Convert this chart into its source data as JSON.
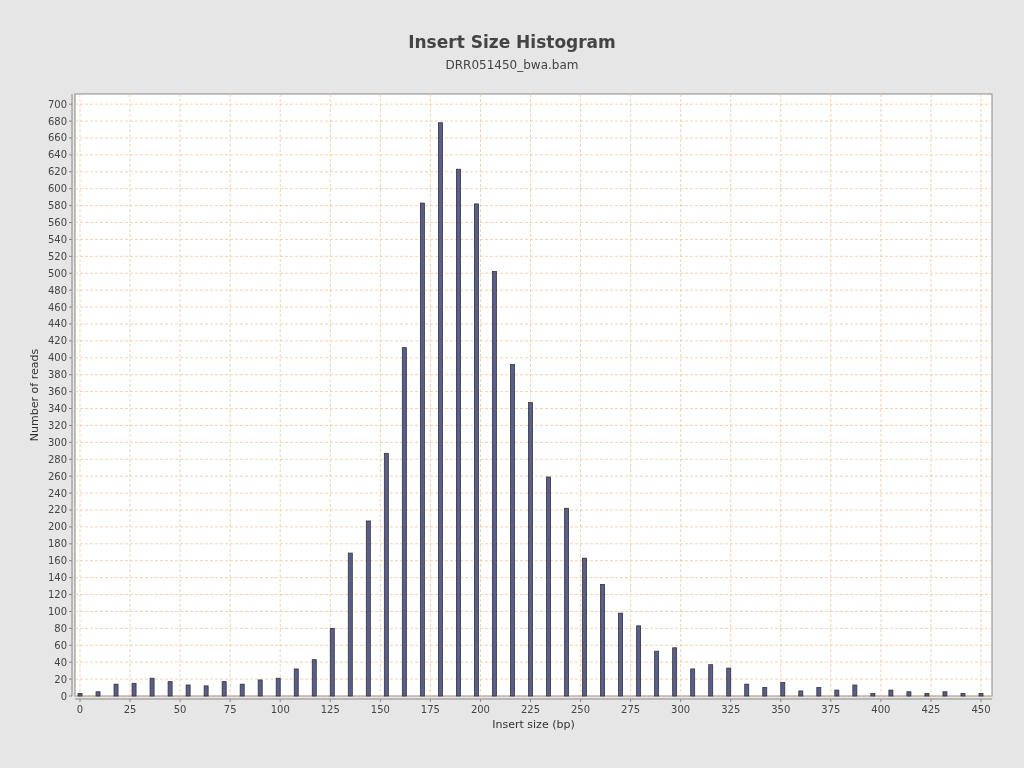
{
  "chart_data": {
    "type": "bar",
    "title": "Insert Size Histogram",
    "subtitle": "DRR051450_bwa.bam",
    "xlabel": "Insert size (bp)",
    "ylabel": "Number of reads",
    "x": [
      0,
      9,
      18,
      27,
      36,
      45,
      54,
      63,
      72,
      81,
      90,
      99,
      108,
      117,
      126,
      135,
      144,
      153,
      162,
      171,
      180,
      189,
      198,
      207,
      216,
      225,
      234,
      243,
      252,
      261,
      270,
      279,
      288,
      297,
      306,
      315,
      324,
      333,
      342,
      351,
      360,
      369,
      378,
      387,
      396,
      405,
      414,
      423,
      432,
      441,
      450
    ],
    "series": [
      {
        "color": "#5a5e8c",
        "values": [
          3,
          5,
          14,
          15,
          21,
          17,
          13,
          12,
          17,
          14,
          19,
          21,
          32,
          43,
          80,
          169,
          207,
          287,
          412,
          583,
          678,
          623,
          582,
          502,
          392,
          347,
          259,
          222,
          163,
          132,
          98,
          83,
          53,
          57,
          32,
          37,
          33,
          14,
          10,
          16,
          6,
          10,
          7,
          13,
          3,
          7,
          5,
          3,
          5,
          3,
          3
        ]
      }
    ],
    "xlim": [
      -2.5,
      455.5
    ],
    "ylim": [
      0,
      712
    ],
    "xticks": [
      0,
      25,
      50,
      75,
      100,
      125,
      150,
      175,
      200,
      225,
      250,
      275,
      300,
      325,
      350,
      375,
      400,
      425,
      450
    ],
    "yticks": [
      0,
      20,
      40,
      60,
      80,
      100,
      120,
      140,
      160,
      180,
      200,
      220,
      240,
      260,
      280,
      300,
      320,
      340,
      360,
      380,
      400,
      420,
      440,
      460,
      480,
      500,
      520,
      540,
      560,
      580,
      600,
      620,
      640,
      660,
      680,
      700
    ],
    "grid": true
  }
}
